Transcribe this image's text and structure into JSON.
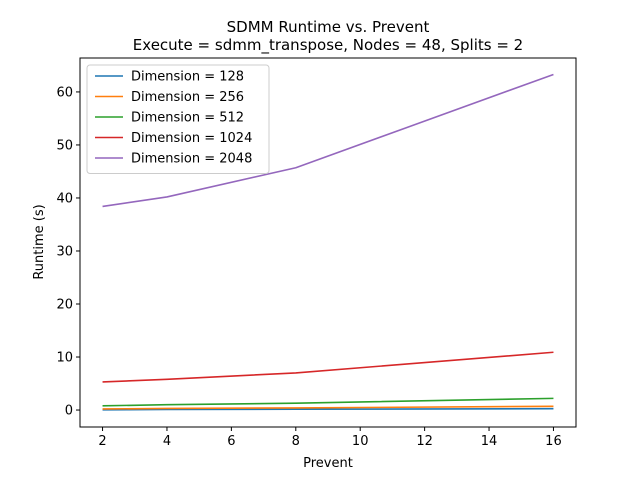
{
  "chart_data": {
    "type": "line",
    "title": "SDMM Runtime vs. Prevent",
    "subtitle": "Execute = sdmm_transpose, Nodes = 48, Splits = 2",
    "xlabel": "Prevent",
    "ylabel": "Runtime (s)",
    "x": [
      2,
      4,
      8,
      16
    ],
    "xlim": [
      1.3,
      16.7
    ],
    "ylim": [
      -3.2,
      66.4
    ],
    "xticks": [
      2,
      4,
      6,
      8,
      10,
      12,
      14,
      16
    ],
    "yticks": [
      0,
      10,
      20,
      30,
      40,
      50,
      60
    ],
    "grid": false,
    "legend_position": "top-left",
    "series": [
      {
        "name": "Dimension = 128",
        "color": "#1f77b4",
        "values": [
          0.05,
          0.1,
          0.15,
          0.25
        ]
      },
      {
        "name": "Dimension = 256",
        "color": "#ff7f0e",
        "values": [
          0.2,
          0.3,
          0.4,
          0.7
        ]
      },
      {
        "name": "Dimension = 512",
        "color": "#2ca02c",
        "values": [
          0.8,
          1.0,
          1.3,
          2.2
        ]
      },
      {
        "name": "Dimension = 1024",
        "color": "#d62728",
        "values": [
          5.3,
          5.8,
          7.0,
          10.9
        ]
      },
      {
        "name": "Dimension = 2048",
        "color": "#9467bd",
        "values": [
          38.4,
          40.2,
          45.7,
          63.3
        ]
      }
    ]
  }
}
